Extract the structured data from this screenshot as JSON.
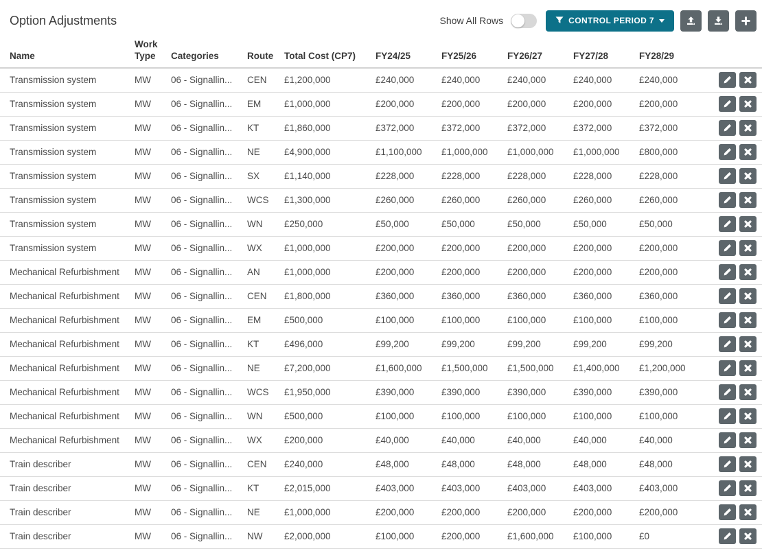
{
  "colors": {
    "accent_teal": "#0d7189",
    "button_gray": "#5d666b",
    "row_border": "#dddddd",
    "toggle_track": "#d8d8d8"
  },
  "header": {
    "title": "Option Adjustments",
    "show_all_rows_label": "Show All Rows",
    "show_all_rows_state": "off",
    "filter_button": {
      "label": "CONTROL PERIOD 7",
      "icon": "filter-funnel-icon",
      "caret": "caret-down-icon"
    },
    "toolbar_icons": [
      {
        "name": "upload-icon"
      },
      {
        "name": "download-icon"
      },
      {
        "name": "plus-icon"
      }
    ]
  },
  "table": {
    "columns": [
      "Name",
      "Work Type",
      "Categories",
      "Route",
      "Total Cost (CP7)",
      "FY24/25",
      "FY25/26",
      "FY26/27",
      "FY27/28",
      "FY28/29"
    ],
    "row_action_icons": [
      "pencil-icon",
      "x-icon"
    ],
    "rows": [
      {
        "name": "Transmission system",
        "work_type": "MW",
        "categories": "06 - Signallin...",
        "route": "CEN",
        "total_cost": "£1,200,000",
        "fy": [
          "£240,000",
          "£240,000",
          "£240,000",
          "£240,000",
          "£240,000"
        ]
      },
      {
        "name": "Transmission system",
        "work_type": "MW",
        "categories": "06 - Signallin...",
        "route": "EM",
        "total_cost": "£1,000,000",
        "fy": [
          "£200,000",
          "£200,000",
          "£200,000",
          "£200,000",
          "£200,000"
        ]
      },
      {
        "name": "Transmission system",
        "work_type": "MW",
        "categories": "06 - Signallin...",
        "route": "KT",
        "total_cost": "£1,860,000",
        "fy": [
          "£372,000",
          "£372,000",
          "£372,000",
          "£372,000",
          "£372,000"
        ]
      },
      {
        "name": "Transmission system",
        "work_type": "MW",
        "categories": "06 - Signallin...",
        "route": "NE",
        "total_cost": "£4,900,000",
        "fy": [
          "£1,100,000",
          "£1,000,000",
          "£1,000,000",
          "£1,000,000",
          "£800,000"
        ]
      },
      {
        "name": "Transmission system",
        "work_type": "MW",
        "categories": "06 - Signallin...",
        "route": "SX",
        "total_cost": "£1,140,000",
        "fy": [
          "£228,000",
          "£228,000",
          "£228,000",
          "£228,000",
          "£228,000"
        ]
      },
      {
        "name": "Transmission system",
        "work_type": "MW",
        "categories": "06 - Signallin...",
        "route": "WCS",
        "total_cost": "£1,300,000",
        "fy": [
          "£260,000",
          "£260,000",
          "£260,000",
          "£260,000",
          "£260,000"
        ]
      },
      {
        "name": "Transmission system",
        "work_type": "MW",
        "categories": "06 - Signallin...",
        "route": "WN",
        "total_cost": "£250,000",
        "fy": [
          "£50,000",
          "£50,000",
          "£50,000",
          "£50,000",
          "£50,000"
        ]
      },
      {
        "name": "Transmission system",
        "work_type": "MW",
        "categories": "06 - Signallin...",
        "route": "WX",
        "total_cost": "£1,000,000",
        "fy": [
          "£200,000",
          "£200,000",
          "£200,000",
          "£200,000",
          "£200,000"
        ]
      },
      {
        "name": "Mechanical Refurbishment",
        "work_type": "MW",
        "categories": "06 - Signallin...",
        "route": "AN",
        "total_cost": "£1,000,000",
        "fy": [
          "£200,000",
          "£200,000",
          "£200,000",
          "£200,000",
          "£200,000"
        ]
      },
      {
        "name": "Mechanical Refurbishment",
        "work_type": "MW",
        "categories": "06 - Signallin...",
        "route": "CEN",
        "total_cost": "£1,800,000",
        "fy": [
          "£360,000",
          "£360,000",
          "£360,000",
          "£360,000",
          "£360,000"
        ]
      },
      {
        "name": "Mechanical Refurbishment",
        "work_type": "MW",
        "categories": "06 - Signallin...",
        "route": "EM",
        "total_cost": "£500,000",
        "fy": [
          "£100,000",
          "£100,000",
          "£100,000",
          "£100,000",
          "£100,000"
        ]
      },
      {
        "name": "Mechanical Refurbishment",
        "work_type": "MW",
        "categories": "06 - Signallin...",
        "route": "KT",
        "total_cost": "£496,000",
        "fy": [
          "£99,200",
          "£99,200",
          "£99,200",
          "£99,200",
          "£99,200"
        ]
      },
      {
        "name": "Mechanical Refurbishment",
        "work_type": "MW",
        "categories": "06 - Signallin...",
        "route": "NE",
        "total_cost": "£7,200,000",
        "fy": [
          "£1,600,000",
          "£1,500,000",
          "£1,500,000",
          "£1,400,000",
          "£1,200,000"
        ]
      },
      {
        "name": "Mechanical Refurbishment",
        "work_type": "MW",
        "categories": "06 - Signallin...",
        "route": "WCS",
        "total_cost": "£1,950,000",
        "fy": [
          "£390,000",
          "£390,000",
          "£390,000",
          "£390,000",
          "£390,000"
        ]
      },
      {
        "name": "Mechanical Refurbishment",
        "work_type": "MW",
        "categories": "06 - Signallin...",
        "route": "WN",
        "total_cost": "£500,000",
        "fy": [
          "£100,000",
          "£100,000",
          "£100,000",
          "£100,000",
          "£100,000"
        ]
      },
      {
        "name": "Mechanical Refurbishment",
        "work_type": "MW",
        "categories": "06 - Signallin...",
        "route": "WX",
        "total_cost": "£200,000",
        "fy": [
          "£40,000",
          "£40,000",
          "£40,000",
          "£40,000",
          "£40,000"
        ]
      },
      {
        "name": "Train describer",
        "work_type": "MW",
        "categories": "06 - Signallin...",
        "route": "CEN",
        "total_cost": "£240,000",
        "fy": [
          "£48,000",
          "£48,000",
          "£48,000",
          "£48,000",
          "£48,000"
        ]
      },
      {
        "name": "Train describer",
        "work_type": "MW",
        "categories": "06 - Signallin...",
        "route": "KT",
        "total_cost": "£2,015,000",
        "fy": [
          "£403,000",
          "£403,000",
          "£403,000",
          "£403,000",
          "£403,000"
        ]
      },
      {
        "name": "Train describer",
        "work_type": "MW",
        "categories": "06 - Signallin...",
        "route": "NE",
        "total_cost": "£1,000,000",
        "fy": [
          "£200,000",
          "£200,000",
          "£200,000",
          "£200,000",
          "£200,000"
        ]
      },
      {
        "name": "Train describer",
        "work_type": "MW",
        "categories": "06 - Signallin...",
        "route": "NW",
        "total_cost": "£2,000,000",
        "fy": [
          "£100,000",
          "£200,000",
          "£1,600,000",
          "£100,000",
          "£0"
        ]
      }
    ]
  }
}
